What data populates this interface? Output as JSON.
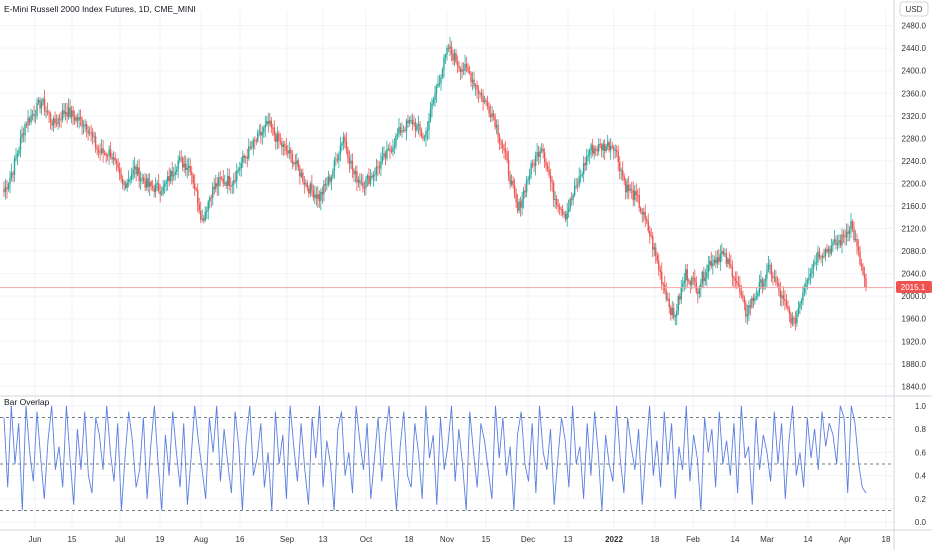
{
  "header": {
    "symbol_title": "E-Mini Russell 2000 Index Futures, 1D, CME_MINI",
    "currency_label": "USD",
    "last_price_label": "2015.1"
  },
  "colors": {
    "up": "#26a69a",
    "down": "#ef5350",
    "indicator_line": "#5b7fe0",
    "price_line": "#f5a3a3",
    "level_line": "#787b86",
    "grid": "#f0f3fa",
    "last_price_bg": "#ef5350"
  },
  "indicator": {
    "name": "Bar Overlap"
  },
  "chart_data": [
    {
      "type": "candlestick",
      "title": "E-Mini Russell 2000 Index Futures, 1D, CME_MINI",
      "ylim": [
        1830,
        2490
      ],
      "y_ticks": [
        "2480.0",
        "2440.0",
        "2400.0",
        "2360.0",
        "2320.0",
        "2280.0",
        "2240.0",
        "2200.0",
        "2160.0",
        "2120.0",
        "2080.0",
        "2040.0",
        "2000.0",
        "1960.0",
        "1920.0",
        "1880.0",
        "1840.0"
      ],
      "last_price": 2015.1,
      "x_labels": [
        "Jun",
        "15",
        "Jul",
        "19",
        "Aug",
        "16",
        "Sep",
        "13",
        "Oct",
        "18",
        "Nov",
        "15",
        "Dec",
        "13",
        "2022",
        "18",
        "Feb",
        "14",
        "Mar",
        "14",
        "Apr",
        "18"
      ],
      "anchors": [
        [
          0,
          2185
        ],
        [
          6,
          2225
        ],
        [
          14,
          2305
        ],
        [
          25,
          2345
        ],
        [
          33,
          2305
        ],
        [
          41,
          2330
        ],
        [
          48,
          2315
        ],
        [
          55,
          2305
        ],
        [
          63,
          2255
        ],
        [
          71,
          2255
        ],
        [
          79,
          2195
        ],
        [
          87,
          2225
        ],
        [
          96,
          2195
        ],
        [
          106,
          2190
        ],
        [
          116,
          2240
        ],
        [
          124,
          2230
        ],
        [
          132,
          2135
        ],
        [
          138,
          2185
        ],
        [
          144,
          2205
        ],
        [
          152,
          2205
        ],
        [
          160,
          2245
        ],
        [
          169,
          2280
        ],
        [
          176,
          2305
        ],
        [
          184,
          2270
        ],
        [
          192,
          2245
        ],
        [
          202,
          2195
        ],
        [
          210,
          2175
        ],
        [
          218,
          2215
        ],
        [
          226,
          2285
        ],
        [
          233,
          2215
        ],
        [
          240,
          2200
        ],
        [
          248,
          2225
        ],
        [
          256,
          2255
        ],
        [
          264,
          2295
        ],
        [
          272,
          2310
        ],
        [
          280,
          2280
        ],
        [
          288,
          2370
        ],
        [
          296,
          2440
        ],
        [
          303,
          2410
        ],
        [
          310,
          2395
        ],
        [
          318,
          2355
        ],
        [
          326,
          2320
        ],
        [
          334,
          2245
        ],
        [
          342,
          2150
        ],
        [
          350,
          2220
        ],
        [
          358,
          2270
        ],
        [
          366,
          2180
        ],
        [
          374,
          2145
        ],
        [
          382,
          2200
        ],
        [
          390,
          2260
        ],
        [
          398,
          2265
        ],
        [
          406,
          2270
        ],
        [
          414,
          2195
        ],
        [
          422,
          2170
        ],
        [
          430,
          2110
        ],
        [
          438,
          2030
        ],
        [
          446,
          1960
        ],
        [
          454,
          2040
        ],
        [
          462,
          2015
        ],
        [
          470,
          2060
        ],
        [
          478,
          2075
        ],
        [
          486,
          2040
        ],
        [
          494,
          1970
        ],
        [
          502,
          2010
        ],
        [
          510,
          2050
        ],
        [
          518,
          1995
        ],
        [
          526,
          1950
        ],
        [
          534,
          2030
        ],
        [
          542,
          2075
        ],
        [
          550,
          2085
        ],
        [
          558,
          2100
        ],
        [
          564,
          2130
        ],
        [
          570,
          2060
        ],
        [
          574,
          2015
        ]
      ]
    },
    {
      "type": "line",
      "title": "Bar Overlap",
      "ylim": [
        -0.05,
        1.05
      ],
      "y_ticks": [
        "1.0",
        "0.8",
        "0.6",
        "0.4",
        "0.2",
        "0.0"
      ],
      "levels": [
        0.1,
        0.5,
        0.9
      ],
      "series": [
        {
          "values": [
            0.9,
            0.3,
            1.0,
            0.5,
            0.85,
            0.1,
            1.0,
            0.6,
            0.35,
            0.95,
            0.55,
            0.2,
            0.7,
            1.0,
            0.45,
            0.65,
            0.3,
            1.0,
            0.55,
            0.15,
            0.8,
            0.45,
            0.95,
            0.4,
            0.25,
            0.9,
            0.75,
            0.45,
            1.0,
            0.6,
            0.35,
            0.85,
            0.1,
            0.55,
            0.95,
            0.7,
            0.3,
            0.45,
            0.9,
            0.2,
            0.65,
            1.0,
            0.5,
            0.1,
            0.75,
            0.4,
            0.95,
            0.6,
            0.3,
            0.85,
            0.15,
            0.55,
            1.0,
            0.7,
            0.45,
            0.2,
            0.9,
            0.6,
            1.0,
            0.35,
            0.8,
            0.5,
            0.25,
            0.95,
            0.65,
            0.1,
            0.7,
            1.0,
            0.4,
            0.55,
            0.85,
            0.3,
            0.6,
            0.1,
            0.95,
            0.5,
            0.75,
            0.2,
            1.0,
            0.65,
            0.35,
            0.85,
            0.45,
            0.15,
            0.9,
            0.55,
            1.0,
            0.3,
            0.7,
            0.5,
            0.1,
            0.8,
            0.95,
            0.4,
            0.6,
            0.25,
            1.0,
            0.7,
            0.45,
            0.85,
            0.2,
            0.55,
            0.9,
            0.35,
            0.75,
            1.0,
            0.5,
            0.1,
            0.65,
            0.95,
            0.4,
            0.3,
            0.85,
            0.6,
            0.2,
            1.0,
            0.55,
            0.75,
            0.15,
            0.9,
            0.45,
            0.65,
            1.0,
            0.35,
            0.8,
            0.5,
            0.1,
            0.95,
            0.6,
            0.3,
            0.85,
            0.7,
            0.45,
            0.2,
            1.0,
            0.55,
            0.9,
            0.4,
            0.65,
            0.1,
            0.75,
            0.95,
            0.5,
            0.35,
            0.85,
            0.25,
            1.0,
            0.6,
            0.45,
            0.8,
            0.15,
            0.55,
            0.9,
            0.7,
            0.3,
            1.0,
            0.5,
            0.65,
            0.2,
            0.85,
            0.4,
            0.95,
            0.6,
            0.1,
            0.75,
            0.5,
            0.35,
            1.0,
            0.55,
            0.25,
            0.9,
            0.65,
            0.45,
            0.8,
            0.15,
            0.6,
            1.0,
            0.4,
            0.7,
            0.3,
            0.95,
            0.5,
            0.85,
            0.2,
            0.65,
            0.45,
            1.0,
            0.35,
            0.75,
            0.55,
            0.1,
            0.9,
            0.6,
            0.8,
            0.3,
            0.95,
            0.5,
            0.7,
            0.4,
            0.85,
            0.25,
            1.0,
            0.55,
            0.65,
            0.15,
            0.9,
            0.45,
            0.75,
            0.6,
            0.35,
            0.95,
            0.5,
            0.85,
            0.2,
            0.7,
            1.0,
            0.4,
            0.6,
            0.3,
            0.9,
            0.55,
            0.8,
            0.45,
            0.95,
            0.65,
            0.85,
            0.75,
            0.5,
            1.0,
            0.9,
            0.25,
            1.0,
            0.85,
            0.5,
            0.3,
            0.25
          ]
        }
      ]
    }
  ]
}
